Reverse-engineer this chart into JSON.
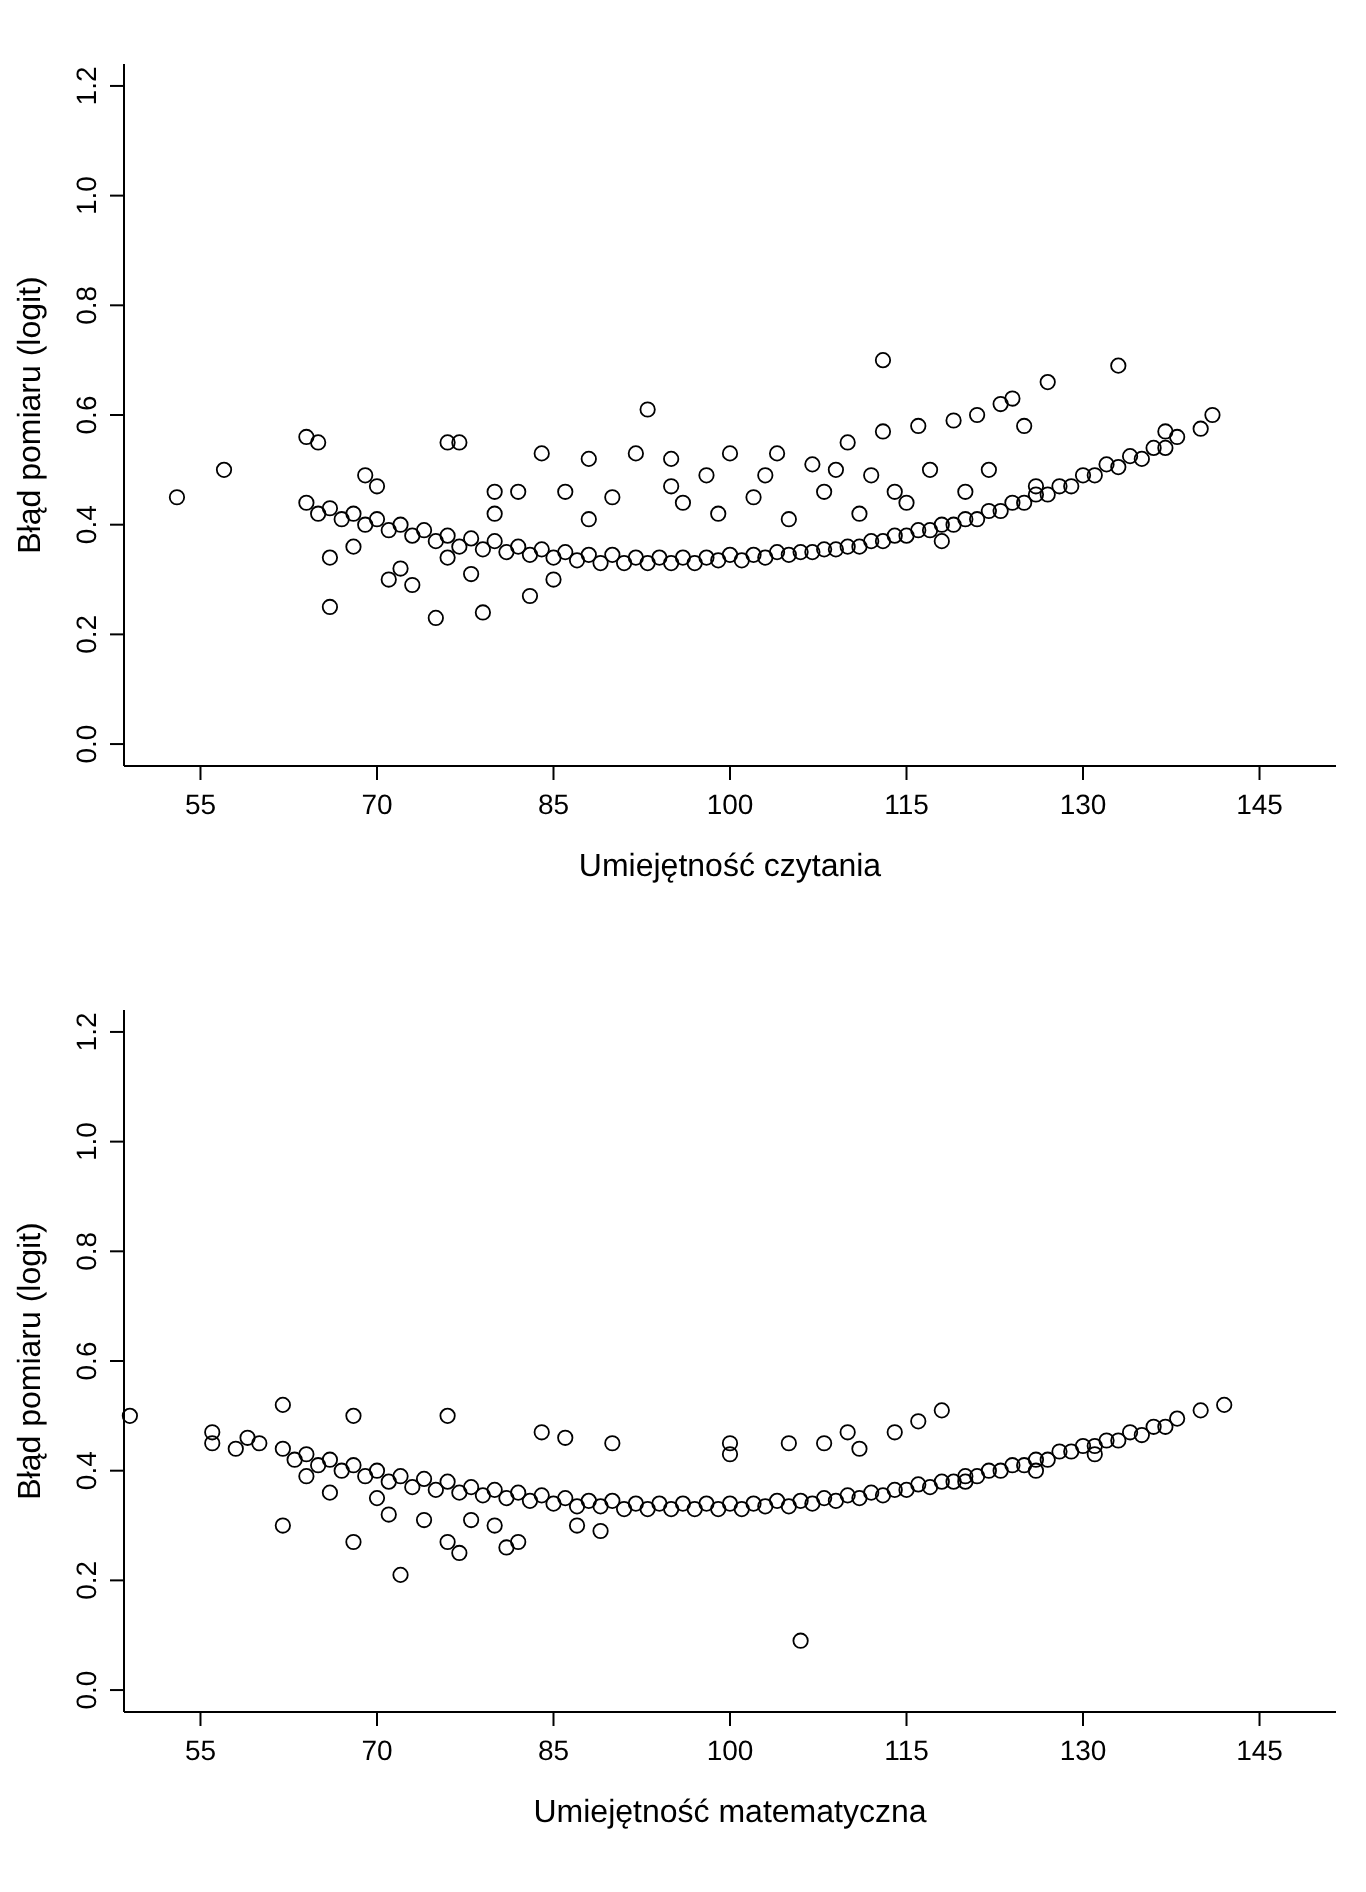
{
  "chart_data": [
    {
      "type": "scatter",
      "xlabel": "Umiejętność czytania",
      "ylabel": "Błąd pomiaru (logit)",
      "xlim": [
        48.5,
        151.5
      ],
      "ylim": [
        -0.04,
        1.24
      ],
      "xticks": [
        55,
        70,
        85,
        100,
        115,
        130,
        145
      ],
      "yticks": [
        {
          "value": 0,
          "label": "0.0"
        },
        {
          "value": 0.2,
          "label": "0.2"
        },
        {
          "value": 0.4,
          "label": "0.4"
        },
        {
          "value": 0.6,
          "label": "0.6"
        },
        {
          "value": 0.8,
          "label": "0.8"
        },
        {
          "value": 1,
          "label": "1.0"
        },
        {
          "value": 1.2,
          "label": "1.2"
        }
      ],
      "marker": "circle",
      "grid": false,
      "series": [
        {
          "color": "#000000",
          "x": [
            64,
            66,
            68,
            70,
            72,
            74,
            76,
            78,
            80,
            82,
            84,
            86,
            88,
            90,
            92,
            94,
            96,
            98,
            100,
            102,
            104,
            106,
            108,
            110,
            112,
            114,
            116,
            118,
            120,
            122,
            124,
            126,
            128,
            130,
            132,
            134,
            136,
            138,
            140,
            65,
            67,
            69,
            71,
            73,
            75,
            77,
            79,
            81,
            83,
            85,
            87,
            89,
            91,
            93,
            95,
            97,
            99,
            101,
            103,
            105,
            107,
            109,
            111,
            113,
            115,
            117,
            119,
            121,
            123,
            125,
            127,
            129,
            131,
            133,
            135,
            137,
            53,
            57,
            64,
            65,
            66,
            66,
            68,
            69,
            70,
            71,
            72,
            73,
            75,
            76,
            77,
            78,
            79,
            80,
            82,
            83,
            84,
            85,
            86,
            88,
            90,
            92,
            93,
            95,
            96,
            98,
            100,
            102,
            104,
            105,
            107,
            108,
            110,
            111,
            112,
            113,
            113,
            115,
            116,
            117,
            118,
            119,
            120,
            121,
            122,
            123,
            124,
            125,
            126,
            127,
            133,
            137,
            141,
            88,
            95,
            103,
            109,
            114,
            99,
            80,
            76
          ],
          "values": [
            0.44,
            0.43,
            0.42,
            0.41,
            0.4,
            0.39,
            0.38,
            0.375,
            0.37,
            0.36,
            0.355,
            0.35,
            0.345,
            0.345,
            0.34,
            0.34,
            0.34,
            0.34,
            0.345,
            0.345,
            0.35,
            0.35,
            0.355,
            0.36,
            0.37,
            0.38,
            0.39,
            0.4,
            0.41,
            0.425,
            0.44,
            0.455,
            0.47,
            0.49,
            0.51,
            0.525,
            0.54,
            0.56,
            0.575,
            0.42,
            0.41,
            0.4,
            0.39,
            0.38,
            0.37,
            0.36,
            0.355,
            0.35,
            0.345,
            0.34,
            0.335,
            0.33,
            0.33,
            0.33,
            0.33,
            0.33,
            0.335,
            0.335,
            0.34,
            0.345,
            0.35,
            0.355,
            0.36,
            0.37,
            0.38,
            0.39,
            0.4,
            0.41,
            0.425,
            0.44,
            0.455,
            0.47,
            0.49,
            0.505,
            0.52,
            0.54,
            0.45,
            0.5,
            0.56,
            0.55,
            0.25,
            0.34,
            0.36,
            0.49,
            0.47,
            0.3,
            0.32,
            0.29,
            0.23,
            0.55,
            0.55,
            0.31,
            0.24,
            0.46,
            0.46,
            0.27,
            0.53,
            0.3,
            0.46,
            0.52,
            0.45,
            0.53,
            0.61,
            0.52,
            0.44,
            0.49,
            0.53,
            0.45,
            0.53,
            0.41,
            0.51,
            0.46,
            0.55,
            0.42,
            0.49,
            0.57,
            0.7,
            0.44,
            0.58,
            0.5,
            0.37,
            0.59,
            0.46,
            0.6,
            0.5,
            0.62,
            0.63,
            0.58,
            0.47,
            0.66,
            0.69,
            0.57,
            0.6,
            0.41,
            0.47,
            0.49,
            0.5,
            0.46,
            0.42,
            0.42,
            0.34
          ]
        }
      ]
    },
    {
      "type": "scatter",
      "xlabel": "Umiejętność matematyczna",
      "ylabel": "Błąd pomiaru (logit)",
      "xlim": [
        48.5,
        151.5
      ],
      "ylim": [
        -0.04,
        1.24
      ],
      "xticks": [
        55,
        70,
        85,
        100,
        115,
        130,
        145
      ],
      "yticks": [
        {
          "value": 0,
          "label": "0.0"
        },
        {
          "value": 0.2,
          "label": "0.2"
        },
        {
          "value": 0.4,
          "label": "0.4"
        },
        {
          "value": 0.6,
          "label": "0.6"
        },
        {
          "value": 0.8,
          "label": "0.8"
        },
        {
          "value": 1,
          "label": "1.0"
        },
        {
          "value": 1.2,
          "label": "1.2"
        }
      ],
      "marker": "circle",
      "grid": false,
      "series": [
        {
          "color": "#000000",
          "x": [
            60,
            62,
            64,
            66,
            68,
            70,
            72,
            74,
            76,
            78,
            80,
            82,
            84,
            86,
            88,
            90,
            92,
            94,
            96,
            98,
            100,
            102,
            104,
            106,
            108,
            110,
            112,
            114,
            116,
            118,
            120,
            122,
            124,
            126,
            128,
            130,
            132,
            134,
            136,
            138,
            140,
            142,
            63,
            65,
            67,
            69,
            71,
            73,
            75,
            77,
            79,
            81,
            83,
            85,
            87,
            89,
            91,
            93,
            95,
            97,
            99,
            101,
            103,
            105,
            107,
            109,
            111,
            113,
            115,
            117,
            119,
            121,
            123,
            125,
            127,
            129,
            131,
            133,
            135,
            137,
            49,
            56,
            56,
            58,
            59,
            62,
            62,
            64,
            66,
            68,
            68,
            70,
            71,
            72,
            74,
            76,
            76,
            77,
            78,
            80,
            81,
            82,
            84,
            86,
            87,
            89,
            90,
            100,
            100,
            105,
            106,
            108,
            110,
            111,
            114,
            116,
            118,
            120,
            131,
            126
          ],
          "values": [
            0.45,
            0.44,
            0.43,
            0.42,
            0.41,
            0.4,
            0.39,
            0.385,
            0.38,
            0.37,
            0.365,
            0.36,
            0.355,
            0.35,
            0.345,
            0.345,
            0.34,
            0.34,
            0.34,
            0.34,
            0.34,
            0.34,
            0.345,
            0.345,
            0.35,
            0.355,
            0.36,
            0.365,
            0.375,
            0.38,
            0.39,
            0.4,
            0.41,
            0.42,
            0.435,
            0.445,
            0.455,
            0.47,
            0.48,
            0.495,
            0.51,
            0.52,
            0.42,
            0.41,
            0.4,
            0.39,
            0.38,
            0.37,
            0.365,
            0.36,
            0.355,
            0.35,
            0.345,
            0.34,
            0.335,
            0.335,
            0.33,
            0.33,
            0.33,
            0.33,
            0.33,
            0.33,
            0.335,
            0.335,
            0.34,
            0.345,
            0.35,
            0.355,
            0.365,
            0.37,
            0.38,
            0.39,
            0.4,
            0.41,
            0.42,
            0.435,
            0.445,
            0.455,
            0.465,
            0.48,
            0.5,
            0.47,
            0.45,
            0.44,
            0.46,
            0.52,
            0.3,
            0.39,
            0.36,
            0.27,
            0.5,
            0.35,
            0.32,
            0.21,
            0.31,
            0.5,
            0.27,
            0.25,
            0.31,
            0.3,
            0.26,
            0.27,
            0.47,
            0.46,
            0.3,
            0.29,
            0.45,
            0.45,
            0.43,
            0.45,
            0.09,
            0.45,
            0.47,
            0.44,
            0.47,
            0.49,
            0.51,
            0.38,
            0.43,
            0.4
          ]
        }
      ]
    }
  ]
}
